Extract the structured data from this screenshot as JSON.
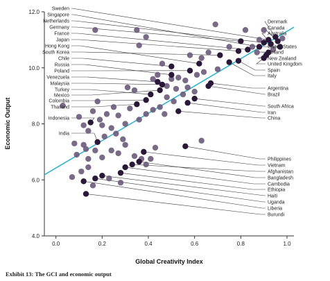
{
  "caption": "Exhibit 13: The GCI and economic output",
  "colors": {
    "point": "#6a5a7a",
    "point_dark": "#2a1838",
    "fit_line": "#2bb6d6",
    "leader": "#3a3a3a"
  },
  "chart_data": {
    "type": "scatter",
    "xlabel": "Global Creativity Index",
    "ylabel": "Economic Output",
    "xlim": [
      -0.05,
      1.03
    ],
    "ylim": [
      4.0,
      12.0
    ],
    "x_ticks": [
      0.0,
      0.2,
      0.4,
      0.6,
      0.8,
      1.0
    ],
    "x_tick_labels": [
      "0.0",
      "0.2",
      "0.4",
      "0.6",
      "0.8",
      "1.0"
    ],
    "y_ticks": [
      4.0,
      6.0,
      8.0,
      10.0,
      12.0
    ],
    "y_tick_labels": [
      "4.0",
      "6.0",
      "8.0",
      "10.0",
      "12.0"
    ],
    "grid": false,
    "trend_line": {
      "x": [
        -0.05,
        1.03
      ],
      "y": [
        6.18,
        11.45
      ]
    },
    "labeled_points": [
      {
        "label": "Sweden",
        "x": 0.92,
        "y": 11.0,
        "side": "left"
      },
      {
        "label": "Singapore",
        "x": 0.88,
        "y": 10.75,
        "side": "left"
      },
      {
        "label": "Netherlands",
        "x": 0.9,
        "y": 10.9,
        "side": "left"
      },
      {
        "label": "Germany",
        "x": 0.8,
        "y": 10.95,
        "side": "left"
      },
      {
        "label": "France",
        "x": 0.83,
        "y": 10.65,
        "side": "left"
      },
      {
        "label": "Japan",
        "x": 0.79,
        "y": 10.6,
        "side": "left"
      },
      {
        "label": "Hong Kong",
        "x": 0.62,
        "y": 10.15,
        "side": "left"
      },
      {
        "label": "South Korea",
        "x": 0.71,
        "y": 10.45,
        "side": "left"
      },
      {
        "label": "Chile",
        "x": 0.5,
        "y": 10.05,
        "side": "left"
      },
      {
        "label": "Russia",
        "x": 0.5,
        "y": 9.75,
        "side": "left"
      },
      {
        "label": "Poland",
        "x": 0.58,
        "y": 9.9,
        "side": "left"
      },
      {
        "label": "Venezuela",
        "x": 0.44,
        "y": 9.5,
        "side": "left"
      },
      {
        "label": "Malaysia",
        "x": 0.46,
        "y": 9.4,
        "side": "left"
      },
      {
        "label": "Turkey",
        "x": 0.41,
        "y": 9.05,
        "side": "left"
      },
      {
        "label": "Mexico",
        "x": 0.45,
        "y": 9.2,
        "side": "left"
      },
      {
        "label": "Colombia",
        "x": 0.39,
        "y": 8.85,
        "side": "left"
      },
      {
        "label": "Thailand",
        "x": 0.35,
        "y": 8.7,
        "side": "left"
      },
      {
        "label": "Indonesia",
        "x": 0.15,
        "y": 8.05,
        "side": "left"
      },
      {
        "label": "India",
        "x": 0.18,
        "y": 7.35,
        "side": "left"
      },
      {
        "label": "Denmark",
        "x": 0.95,
        "y": 11.1,
        "side": "right"
      },
      {
        "label": "Canada",
        "x": 0.96,
        "y": 10.95,
        "side": "right"
      },
      {
        "label": "Australia",
        "x": 0.93,
        "y": 10.85,
        "side": "right"
      },
      {
        "label": "United States",
        "x": 0.97,
        "y": 10.75,
        "side": "right"
      },
      {
        "label": "Finland",
        "x": 0.92,
        "y": 10.55,
        "side": "right"
      },
      {
        "label": "New Zealand",
        "x": 0.91,
        "y": 10.45,
        "side": "right"
      },
      {
        "label": "United Kingdom",
        "x": 0.9,
        "y": 10.35,
        "side": "right"
      },
      {
        "label": "Spain",
        "x": 0.79,
        "y": 10.25,
        "side": "right"
      },
      {
        "label": "Italy",
        "x": 0.75,
        "y": 10.2,
        "side": "right"
      },
      {
        "label": "Argentina",
        "x": 0.67,
        "y": 9.45,
        "side": "right"
      },
      {
        "label": "Brazil",
        "x": 0.66,
        "y": 9.35,
        "side": "right"
      },
      {
        "label": "South Africa",
        "x": 0.6,
        "y": 8.9,
        "side": "right"
      },
      {
        "label": "Iran",
        "x": 0.57,
        "y": 8.75,
        "side": "right"
      },
      {
        "label": "China",
        "x": 0.53,
        "y": 8.45,
        "side": "right"
      },
      {
        "label": "Philippines",
        "x": 0.56,
        "y": 7.2,
        "side": "right"
      },
      {
        "label": "Vietnam",
        "x": 0.38,
        "y": 7.0,
        "side": "right"
      },
      {
        "label": "Afghanistan",
        "x": 0.33,
        "y": 6.55,
        "side": "right"
      },
      {
        "label": "Bangladesh",
        "x": 0.36,
        "y": 6.65,
        "side": "right"
      },
      {
        "label": "Cambodia",
        "x": 0.3,
        "y": 6.45,
        "side": "right"
      },
      {
        "label": "Ethiopia",
        "x": 0.28,
        "y": 6.25,
        "side": "right"
      },
      {
        "label": "Haiti",
        "x": 0.2,
        "y": 6.15,
        "side": "right"
      },
      {
        "label": "Uganda",
        "x": 0.17,
        "y": 6.05,
        "side": "right"
      },
      {
        "label": "Liberia",
        "x": 0.12,
        "y": 5.95,
        "side": "right"
      },
      {
        "label": "Burundi",
        "x": 0.13,
        "y": 5.5,
        "side": "right"
      }
    ],
    "points": [
      {
        "x": 0.03,
        "y": 8.65
      },
      {
        "x": 0.1,
        "y": 8.25
      },
      {
        "x": 0.12,
        "y": 7.95
      },
      {
        "x": 0.14,
        "y": 7.75
      },
      {
        "x": 0.16,
        "y": 8.45
      },
      {
        "x": 0.19,
        "y": 8.15
      },
      {
        "x": 0.2,
        "y": 7.95
      },
      {
        "x": 0.22,
        "y": 8.35
      },
      {
        "x": 0.18,
        "y": 8.8
      },
      {
        "x": 0.25,
        "y": 8.6
      },
      {
        "x": 0.27,
        "y": 8.3
      },
      {
        "x": 0.3,
        "y": 8.0
      },
      {
        "x": 0.32,
        "y": 8.55
      },
      {
        "x": 0.24,
        "y": 7.85
      },
      {
        "x": 0.21,
        "y": 7.55
      },
      {
        "x": 0.26,
        "y": 7.65
      },
      {
        "x": 0.29,
        "y": 7.45
      },
      {
        "x": 0.08,
        "y": 7.3
      },
      {
        "x": 0.12,
        "y": 7.25
      },
      {
        "x": 0.13,
        "y": 7.1
      },
      {
        "x": 0.09,
        "y": 6.9
      },
      {
        "x": 0.14,
        "y": 6.75
      },
      {
        "x": 0.07,
        "y": 6.1
      },
      {
        "x": 0.11,
        "y": 6.3
      },
      {
        "x": 0.14,
        "y": 6.45
      },
      {
        "x": 0.17,
        "y": 7.05
      },
      {
        "x": 0.2,
        "y": 6.8
      },
      {
        "x": 0.24,
        "y": 7.05
      },
      {
        "x": 0.27,
        "y": 6.95
      },
      {
        "x": 0.3,
        "y": 7.25
      },
      {
        "x": 0.34,
        "y": 6.85
      },
      {
        "x": 0.37,
        "y": 6.75
      },
      {
        "x": 0.39,
        "y": 6.55
      },
      {
        "x": 0.41,
        "y": 6.75
      },
      {
        "x": 0.43,
        "y": 7.15
      },
      {
        "x": 0.16,
        "y": 5.8
      },
      {
        "x": 0.23,
        "y": 6.05
      },
      {
        "x": 0.28,
        "y": 5.9
      },
      {
        "x": 0.17,
        "y": 11.35
      },
      {
        "x": 0.35,
        "y": 11.35
      },
      {
        "x": 0.39,
        "y": 11.1
      },
      {
        "x": 0.36,
        "y": 10.8
      },
      {
        "x": 0.63,
        "y": 7.4
      },
      {
        "x": 0.69,
        "y": 11.55
      },
      {
        "x": 0.82,
        "y": 11.35
      },
      {
        "x": 0.9,
        "y": 11.35
      },
      {
        "x": 0.98,
        "y": 11.05
      },
      {
        "x": 0.85,
        "y": 10.75
      },
      {
        "x": 0.75,
        "y": 10.75
      },
      {
        "x": 0.66,
        "y": 10.55
      },
      {
        "x": 0.63,
        "y": 10.35
      },
      {
        "x": 0.58,
        "y": 10.45
      },
      {
        "x": 0.46,
        "y": 10.15
      },
      {
        "x": 0.44,
        "y": 9.75
      },
      {
        "x": 0.53,
        "y": 9.65
      },
      {
        "x": 0.56,
        "y": 9.55
      },
      {
        "x": 0.61,
        "y": 9.75
      },
      {
        "x": 0.64,
        "y": 9.85
      },
      {
        "x": 0.7,
        "y": 9.95
      },
      {
        "x": 0.48,
        "y": 9.35
      },
      {
        "x": 0.52,
        "y": 9.25
      },
      {
        "x": 0.55,
        "y": 9.05
      },
      {
        "x": 0.48,
        "y": 8.95
      },
      {
        "x": 0.51,
        "y": 8.8
      },
      {
        "x": 0.45,
        "y": 8.6
      },
      {
        "x": 0.42,
        "y": 8.5
      },
      {
        "x": 0.47,
        "y": 8.35
      },
      {
        "x": 0.39,
        "y": 8.35
      },
      {
        "x": 0.36,
        "y": 8.15
      },
      {
        "x": 0.34,
        "y": 9.2
      },
      {
        "x": 0.31,
        "y": 9.3
      },
      {
        "x": 0.57,
        "y": 9.3
      },
      {
        "x": 0.6,
        "y": 9.15
      },
      {
        "x": 0.42,
        "y": 9.6
      },
      {
        "x": 0.5,
        "y": 9.6
      },
      {
        "x": 0.87,
        "y": 10.55
      },
      {
        "x": 0.94,
        "y": 10.65
      },
      {
        "x": 0.88,
        "y": 11.0
      }
    ]
  }
}
